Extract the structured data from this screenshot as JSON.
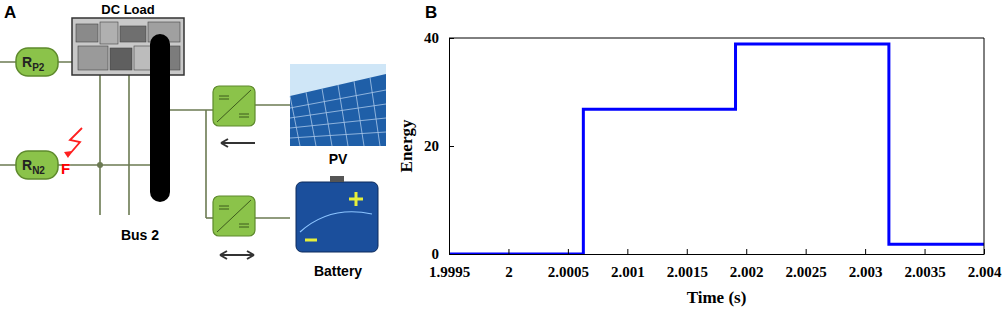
{
  "diagram": {
    "panel_label": "A",
    "dc_load": "DC Load",
    "resistors": [
      {
        "label": "R",
        "subscript": "P2"
      },
      {
        "label": "R",
        "subscript": "N2"
      }
    ],
    "fault": "F",
    "bus": "Bus 2",
    "sources": [
      "PV",
      "Battery"
    ]
  },
  "chart_data": {
    "type": "step",
    "panel_label": "B",
    "x_label": "Time (s)",
    "y_label": "Energy",
    "x": [
      1.9995,
      2.00063,
      2.00191,
      2.0032,
      2.004
    ],
    "series": [
      {
        "color": "#0000ff",
        "values": [
          0,
          26.8,
          38.9,
          1.8,
          1.8
        ]
      }
    ],
    "xlim": [
      1.9995,
      2.004
    ],
    "xticks": [
      1.9995,
      2,
      2.0005,
      2.001,
      2.0015,
      2.002,
      2.0025,
      2.003,
      2.0035,
      2.004
    ],
    "ylim": [
      0,
      40
    ],
    "yticks": [
      0,
      20,
      40
    ],
    "grid": false
  }
}
